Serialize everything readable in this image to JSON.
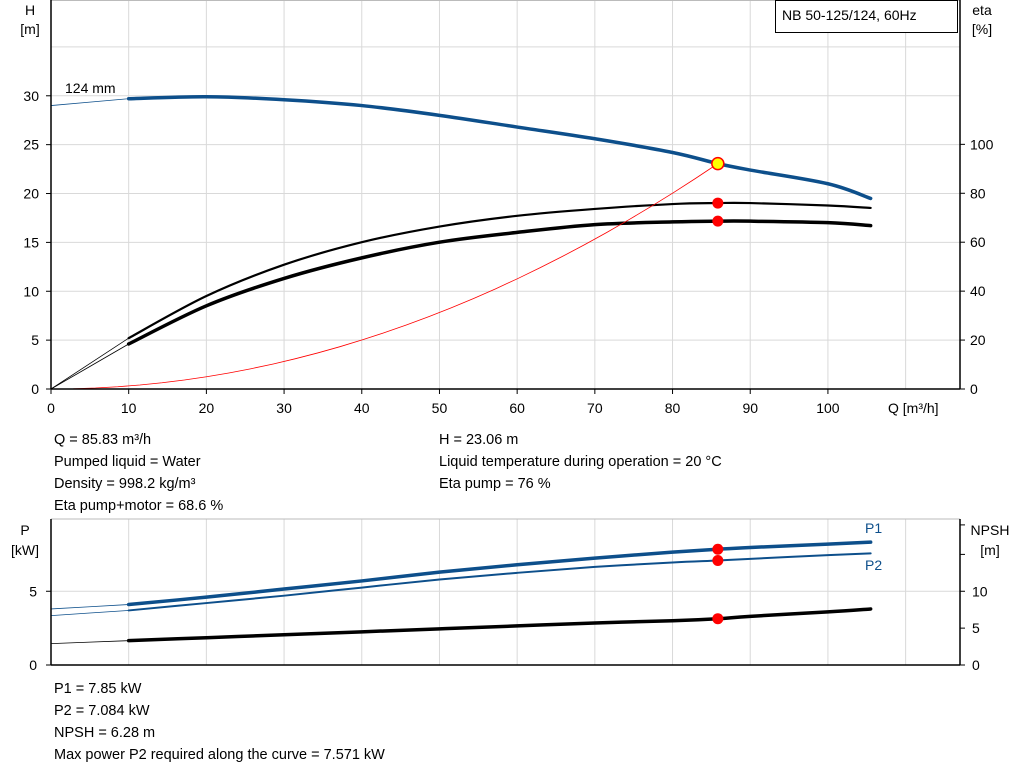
{
  "chart_data": [
    {
      "type": "line",
      "title": "NB 50-125/124, 60Hz",
      "xlabel": "Q [m³/h]",
      "ylabel": "H\n[m]",
      "ylabel_lines": [
        "H",
        "[m]"
      ],
      "y2label_lines": [
        "eta",
        "[%]"
      ],
      "xlim": [
        0,
        117
      ],
      "ylim": [
        0,
        39.8
      ],
      "y2lim": [
        0,
        159
      ],
      "xticks": [
        0,
        10,
        20,
        30,
        40,
        50,
        60,
        70,
        80,
        90,
        100
      ],
      "yticks": [
        0,
        5,
        10,
        15,
        20,
        25,
        30
      ],
      "y2ticks": [
        0,
        20,
        40,
        60,
        80,
        100
      ],
      "grid": true,
      "curve_label": "124 mm",
      "colors": {
        "head": "#0d4f8b",
        "eta": "#000000",
        "system": "#ff0000",
        "grid": "#d9d9d9",
        "point_fill": "#ffff00",
        "point_marker": "#ff0000"
      },
      "x": [
        0,
        10,
        20,
        30,
        40,
        50,
        60,
        70,
        80,
        85.83,
        90,
        100,
        105.5
      ],
      "series": [
        {
          "key": "head",
          "axis": "left",
          "values": [
            29.0,
            29.7,
            29.9,
            29.6,
            29.0,
            28.0,
            26.8,
            25.6,
            24.2,
            23.06,
            22.4,
            21.0,
            19.5
          ]
        },
        {
          "key": "eta_pump",
          "axis": "right",
          "values": [
            0,
            20.8,
            38,
            50.8,
            60,
            66.4,
            70.8,
            73.6,
            75.6,
            76,
            76,
            75,
            74
          ]
        },
        {
          "key": "eta_pump_motor",
          "axis": "right",
          "values": [
            0,
            18.4,
            34,
            45.2,
            53.6,
            60,
            64,
            67.2,
            68.3,
            68.6,
            68.6,
            68,
            66.8
          ]
        }
      ],
      "system_curve": {
        "q_end": 85.83,
        "h_end": 23.06
      },
      "operating_point": {
        "q": 85.83,
        "h": 23.06,
        "eta_pump": 76,
        "eta_pump_motor": 68.6
      }
    },
    {
      "type": "line",
      "ylabel_lines": [
        "P",
        "[kW]"
      ],
      "y2label_lines": [
        "NPSH",
        "[m]"
      ],
      "xlim": [
        0,
        117
      ],
      "ylim": [
        0,
        9.9
      ],
      "y2lim": [
        0,
        19.8
      ],
      "yticks": [
        0,
        5
      ],
      "y2ticks": [
        0,
        5,
        10
      ],
      "grid": true,
      "colors": {
        "power": "#0d4f8b",
        "npsh": "#000000",
        "point_marker": "#ff0000"
      },
      "x": [
        0,
        10,
        20,
        30,
        40,
        50,
        60,
        70,
        80,
        85.83,
        90,
        100,
        105.5
      ],
      "series": [
        {
          "name": "P1",
          "axis": "left",
          "values": [
            3.8,
            4.1,
            4.6,
            5.15,
            5.7,
            6.3,
            6.8,
            7.25,
            7.65,
            7.85,
            7.97,
            8.2,
            8.33
          ]
        },
        {
          "name": "P2",
          "axis": "left",
          "values": [
            3.35,
            3.7,
            4.2,
            4.7,
            5.25,
            5.8,
            6.25,
            6.65,
            6.95,
            7.084,
            7.2,
            7.45,
            7.571
          ]
        },
        {
          "key": "npsh",
          "axis": "right",
          "values": [
            2.9,
            3.3,
            3.7,
            4.1,
            4.5,
            4.9,
            5.3,
            5.7,
            6.0,
            6.28,
            6.6,
            7.2,
            7.6
          ]
        }
      ],
      "operating_point": {
        "q": 85.83,
        "p1": 7.85,
        "p2": 7.084,
        "npsh": 6.28
      }
    }
  ],
  "info_top": {
    "left": [
      "Q = 85.83 m³/h",
      "Pumped liquid = Water",
      "Density = 998.2 kg/m³",
      "Eta pump+motor = 68.6 %"
    ],
    "right": [
      "H = 23.06 m",
      "Liquid temperature during operation = 20 °C",
      "Eta pump = 76 %"
    ]
  },
  "info_bottom": [
    "P1 = 7.85 kW",
    "P2 = 7.084 kW",
    "NPSH = 6.28 m",
    "Max power P2 required along the curve = 7.571 kW"
  ]
}
